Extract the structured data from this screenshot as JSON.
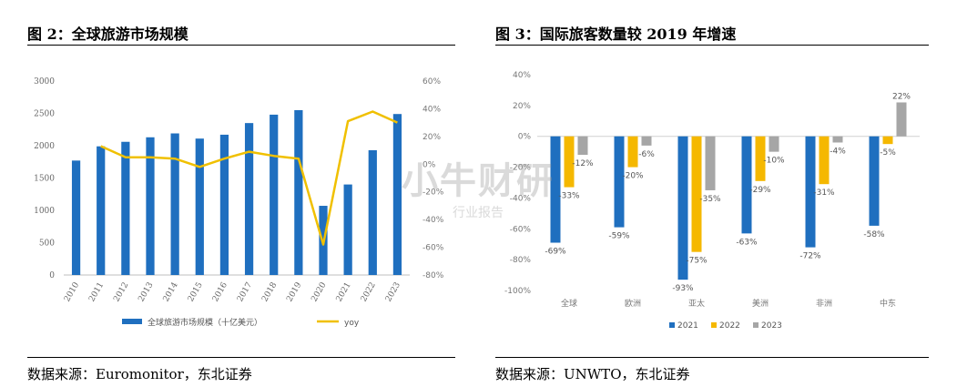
{
  "left": {
    "title": "图 2：全球旅游市场规模",
    "source": "数据来源：Euromonitor，东北证券",
    "chart_data": {
      "type": "bar",
      "categories": [
        "2010",
        "2011",
        "2012",
        "2013",
        "2014",
        "2015",
        "2016",
        "2017",
        "2018",
        "2019",
        "2020",
        "2021",
        "2022",
        "2023"
      ],
      "series": [
        {
          "name": "全球旅游市场规模（十亿美元）",
          "kind": "bar",
          "axis": "left",
          "color": "#1f6fbf",
          "values": [
            1770,
            1990,
            2060,
            2130,
            2190,
            2110,
            2170,
            2350,
            2480,
            2550,
            1070,
            1400,
            1930,
            2490
          ]
        },
        {
          "name": "yoy",
          "kind": "line",
          "axis": "right",
          "color": "#f0c000",
          "values": [
            null,
            13,
            5,
            5,
            4,
            -2,
            4,
            9,
            6,
            4,
            -58,
            31,
            38,
            30
          ]
        }
      ],
      "ylim": [
        0,
        3000
      ],
      "yticks": [
        "0",
        "500",
        "1000",
        "1500",
        "2000",
        "2500",
        "3000"
      ],
      "y2lim": [
        -80,
        60
      ],
      "y2ticks": [
        "-80%",
        "-60%",
        "-40%",
        "-20%",
        "0%",
        "20%",
        "40%",
        "60%"
      ],
      "legend": "bottom"
    }
  },
  "right": {
    "title": "图 3：国际旅客数量较 2019 年增速",
    "source": "数据来源：UNWTO，东北证券",
    "chart_data": {
      "type": "bar",
      "categories": [
        "全球",
        "欧洲",
        "亚太",
        "美洲",
        "非洲",
        "中东"
      ],
      "series": [
        {
          "name": "2021",
          "color": "#1f6fbf",
          "values": [
            -69,
            -59,
            -93,
            -63,
            -72,
            -58
          ],
          "labels": [
            "-69%",
            "-59%",
            "-93%",
            "-63%",
            "-72%",
            "-58%"
          ]
        },
        {
          "name": "2022",
          "color": "#f5b800",
          "values": [
            -33,
            -20,
            -75,
            -29,
            -31,
            -5
          ],
          "labels": [
            "-33%",
            "-20%",
            "-75%",
            "-29%",
            "-31%",
            "-5%"
          ]
        },
        {
          "name": "2023",
          "color": "#a6a6a6",
          "values": [
            -12,
            -6,
            -35,
            -10,
            -4,
            22
          ],
          "labels": [
            "-12%",
            "-6%",
            "-35%",
            "-10%",
            "-4%",
            "22%"
          ]
        }
      ],
      "ylim": [
        -100,
        40
      ],
      "yticks": [
        "-100%",
        "-80%",
        "-60%",
        "-40%",
        "-20%",
        "0%",
        "20%",
        "40%"
      ],
      "legend": "bottom"
    }
  },
  "watermark": {
    "line1": "小牛财研",
    "line2": "行业报告"
  }
}
